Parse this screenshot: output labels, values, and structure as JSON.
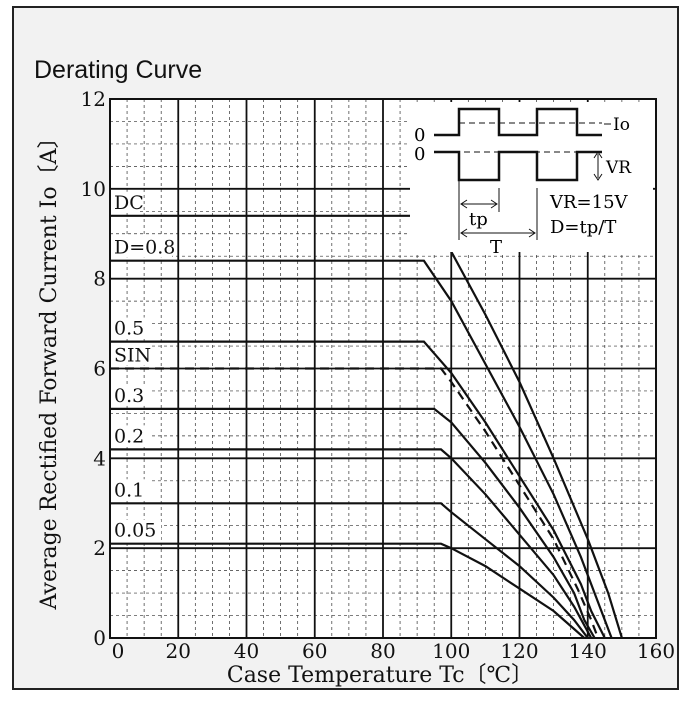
{
  "chart_data": {
    "type": "line",
    "title": "Derating Curve",
    "xlabel": "Case Temperature  Tc〔℃〕",
    "ylabel": "Average Rectified Forward Current  Io〔A〕",
    "xlim": [
      0,
      160
    ],
    "ylim": [
      0,
      12
    ],
    "xticks": [
      "0",
      "20",
      "40",
      "60",
      "80",
      "100",
      "120",
      "140",
      "160"
    ],
    "yticks": [
      "0",
      "2",
      "4",
      "6",
      "8",
      "10",
      "12"
    ],
    "grid": true,
    "series": [
      {
        "name": "DC",
        "dashed": false,
        "points": [
          [
            0,
            9.4
          ],
          [
            92,
            9.4
          ],
          [
            100,
            8.6
          ],
          [
            110,
            7.2
          ],
          [
            120,
            5.7
          ],
          [
            130,
            4.0
          ],
          [
            140,
            2.2
          ],
          [
            146,
            1.0
          ],
          [
            150,
            0
          ]
        ]
      },
      {
        "name": "D=0.8",
        "dashed": false,
        "points": [
          [
            0,
            8.4
          ],
          [
            92,
            8.4
          ],
          [
            100,
            7.5
          ],
          [
            110,
            6.1
          ],
          [
            120,
            4.7
          ],
          [
            130,
            3.2
          ],
          [
            138,
            1.8
          ],
          [
            143,
            0.8
          ],
          [
            147,
            0
          ]
        ]
      },
      {
        "name": "0.5",
        "dashed": false,
        "points": [
          [
            0,
            6.6
          ],
          [
            92,
            6.6
          ],
          [
            100,
            5.9
          ],
          [
            110,
            4.8
          ],
          [
            120,
            3.6
          ],
          [
            130,
            2.4
          ],
          [
            138,
            1.2
          ],
          [
            141,
            0.6
          ],
          [
            145,
            0
          ]
        ]
      },
      {
        "name": "SIN",
        "dashed": true,
        "points": [
          [
            0,
            6.0
          ],
          [
            97,
            6.0
          ],
          [
            100,
            5.7
          ],
          [
            110,
            4.6
          ],
          [
            120,
            3.4
          ],
          [
            130,
            2.2
          ],
          [
            137,
            1.1
          ],
          [
            141,
            0.4
          ],
          [
            143,
            0
          ]
        ]
      },
      {
        "name": "0.3",
        "dashed": false,
        "points": [
          [
            0,
            5.1
          ],
          [
            95,
            5.1
          ],
          [
            100,
            4.8
          ],
          [
            110,
            3.9
          ],
          [
            120,
            2.9
          ],
          [
            130,
            1.8
          ],
          [
            136,
            1.0
          ],
          [
            139,
            0.4
          ],
          [
            142,
            0
          ]
        ]
      },
      {
        "name": "0.2",
        "dashed": false,
        "points": [
          [
            0,
            4.2
          ],
          [
            97,
            4.2
          ],
          [
            100,
            4.0
          ],
          [
            110,
            3.2
          ],
          [
            120,
            2.3
          ],
          [
            130,
            1.4
          ],
          [
            136,
            0.7
          ],
          [
            141,
            0
          ]
        ]
      },
      {
        "name": "0.1",
        "dashed": false,
        "points": [
          [
            0,
            3.0
          ],
          [
            97,
            3.0
          ],
          [
            100,
            2.8
          ],
          [
            110,
            2.2
          ],
          [
            120,
            1.6
          ],
          [
            130,
            0.9
          ],
          [
            136,
            0.4
          ],
          [
            140,
            0
          ]
        ]
      },
      {
        "name": "0.05",
        "dashed": false,
        "points": [
          [
            0,
            2.1
          ],
          [
            97,
            2.1
          ],
          [
            100,
            2.0
          ],
          [
            110,
            1.6
          ],
          [
            120,
            1.1
          ],
          [
            130,
            0.6
          ],
          [
            136,
            0.2
          ],
          [
            139,
            0
          ]
        ]
      }
    ],
    "line_labels": [
      "DC",
      "D=0.8",
      "0.5",
      "SIN",
      "0.3",
      "0.2",
      "0.1",
      "0.05"
    ],
    "inset": {
      "io_label": "Io",
      "vr_label": "VR",
      "zero_label": "0",
      "vr_eq": "VR=15V",
      "d_eq": "D=tp/T",
      "tp_label": "tp",
      "t_label": "T"
    }
  }
}
